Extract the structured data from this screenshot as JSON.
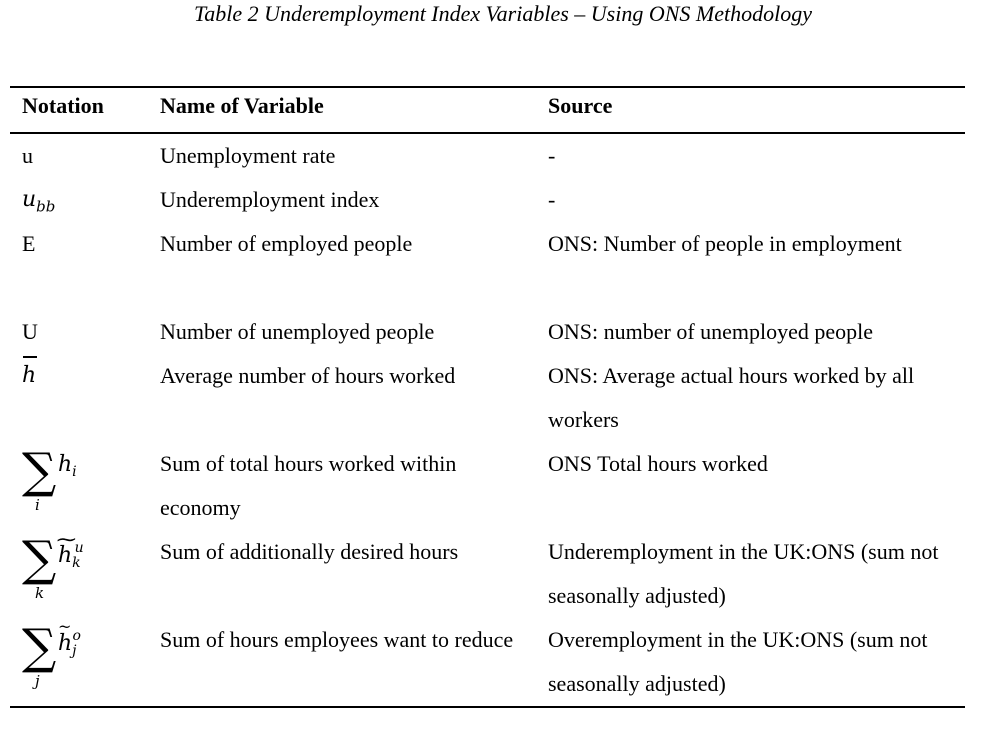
{
  "caption": "Table 2 Underemployment Index Variables – Using ONS Methodology",
  "headers": {
    "notation": "Notation",
    "name": "Name of Variable",
    "source": "Source"
  },
  "rows": [
    {
      "notation": "u",
      "name": "Unemployment rate",
      "source": "-"
    },
    {
      "notation": "ubb",
      "name": "Underemployment index",
      "source": "-"
    },
    {
      "notation": "E",
      "name": "Number of employed people",
      "source": "ONS: Number of people in employment"
    },
    {
      "notation": "U",
      "name": "Number of unemployed people",
      "source": "ONS: number of unemployed people"
    },
    {
      "notation": "h̄",
      "name": "Average number of hours worked",
      "source": "ONS: Average actual hours worked by all workers"
    },
    {
      "notation": "Σi hi",
      "name": "Sum of total hours worked within economy",
      "source": "ONS Total hours worked"
    },
    {
      "notation": "Σk h̃k^u",
      "name": "Sum of additionally desired hours",
      "source": "Underemployment in the UK:ONS (sum not seasonally adjusted)"
    },
    {
      "notation": "Σj h̃j^o",
      "name": "Sum of hours employees want to reduce",
      "source": "Overemployment in the UK:ONS (sum not seasonally adjusted)"
    }
  ]
}
